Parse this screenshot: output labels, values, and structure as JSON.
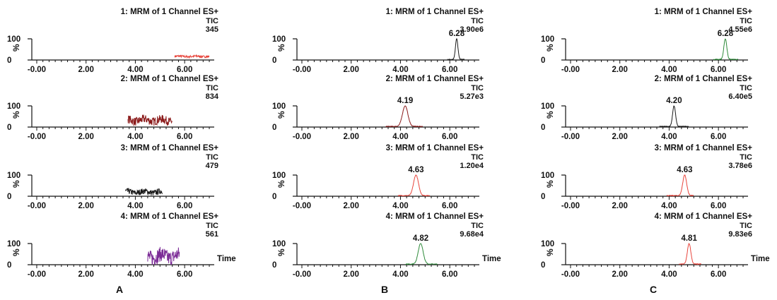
{
  "chart_data": {
    "type": "line",
    "x_ticks": [
      "-0.00",
      "2.00",
      "4.00",
      "6.00"
    ],
    "x_range": [
      -0.2,
      7.2
    ],
    "y_ticks": [
      "100",
      "0"
    ],
    "y_range": [
      0,
      100
    ],
    "y_axis_label": "%",
    "x_axis_label": "Time",
    "panels": [
      {
        "label": "A",
        "traces": [
          {
            "title": "1: MRM of 1 Channel ES+",
            "tic_label": "TIC",
            "tic_value": "345",
            "peak_time": "",
            "color": "#e8453c",
            "kind": "noise",
            "x_start": 5.6,
            "x_end": 7.0,
            "base": 17,
            "amp": 10
          },
          {
            "title": "2: MRM of 1 Channel ES+",
            "tic_label": "TIC",
            "tic_value": "834",
            "peak_time": "",
            "color": "#8b1a1a",
            "kind": "noise",
            "x_start": 3.7,
            "x_end": 5.5,
            "base": 32,
            "amp": 40
          },
          {
            "title": "3: MRM of 1 Channel ES+",
            "tic_label": "TIC",
            "tic_value": "479",
            "peak_time": "",
            "color": "#1a1a1a",
            "kind": "noise",
            "x_start": 3.6,
            "x_end": 5.1,
            "base": 20,
            "amp": 28
          },
          {
            "title": "4: MRM of 1 Channel ES+",
            "tic_label": "TIC",
            "tic_value": "561",
            "peak_time": "",
            "color": "#7b2a96",
            "kind": "noise",
            "x_start": 4.5,
            "x_end": 5.8,
            "base": 40,
            "amp": 70
          }
        ]
      },
      {
        "label": "B",
        "traces": [
          {
            "title": "1: MRM of 1 Channel ES+",
            "tic_label": "TIC",
            "tic_value": "3.90e6",
            "peak_time": "6.28",
            "color": "#1a1a1a",
            "kind": "peak",
            "peak": 6.28,
            "x_start": 5.9,
            "x_end": 6.6,
            "width": 0.05
          },
          {
            "title": "2: MRM of 1 Channel ES+",
            "tic_label": "TIC",
            "tic_value": "5.27e3",
            "peak_time": "4.19",
            "color": "#8b1a1a",
            "kind": "peak",
            "peak": 4.19,
            "x_start": 3.4,
            "x_end": 4.9,
            "width": 0.11
          },
          {
            "title": "3: MRM of 1 Channel ES+",
            "tic_label": "TIC",
            "tic_value": "1.20e4",
            "peak_time": "4.63",
            "color": "#e8453c",
            "kind": "peak",
            "peak": 4.63,
            "x_start": 3.9,
            "x_end": 5.2,
            "width": 0.1
          },
          {
            "title": "4: MRM of 1 Channel ES+",
            "tic_label": "TIC",
            "tic_value": "9.68e4",
            "peak_time": "4.82",
            "color": "#2e8b3a",
            "kind": "peak",
            "peak": 4.82,
            "x_start": 4.2,
            "x_end": 5.5,
            "width": 0.1
          }
        ]
      },
      {
        "label": "C",
        "traces": [
          {
            "title": "1: MRM of 1 Channel ES+",
            "tic_label": "TIC",
            "tic_value": "4.55e6",
            "peak_time": "6.28",
            "color": "#2e8b3a",
            "kind": "peak",
            "peak": 6.28,
            "x_start": 5.8,
            "x_end": 6.8,
            "width": 0.06
          },
          {
            "title": "2: MRM of 1 Channel ES+",
            "tic_label": "TIC",
            "tic_value": "6.40e5",
            "peak_time": "4.20",
            "color": "#1a1a1a",
            "kind": "peak",
            "peak": 4.2,
            "x_start": 3.6,
            "x_end": 4.8,
            "width": 0.06
          },
          {
            "title": "3: MRM of 1 Channel ES+",
            "tic_label": "TIC",
            "tic_value": "3.78e6",
            "peak_time": "4.63",
            "color": "#e8453c",
            "kind": "peak",
            "peak": 4.63,
            "x_start": 3.9,
            "x_end": 5.0,
            "width": 0.08
          },
          {
            "title": "4: MRM of 1 Channel ES+",
            "tic_label": "TIC",
            "tic_value": "9.83e6",
            "peak_time": "4.81",
            "color": "#e8453c",
            "kind": "peak",
            "peak": 4.81,
            "x_start": 4.4,
            "x_end": 5.3,
            "width": 0.07
          }
        ]
      }
    ]
  }
}
